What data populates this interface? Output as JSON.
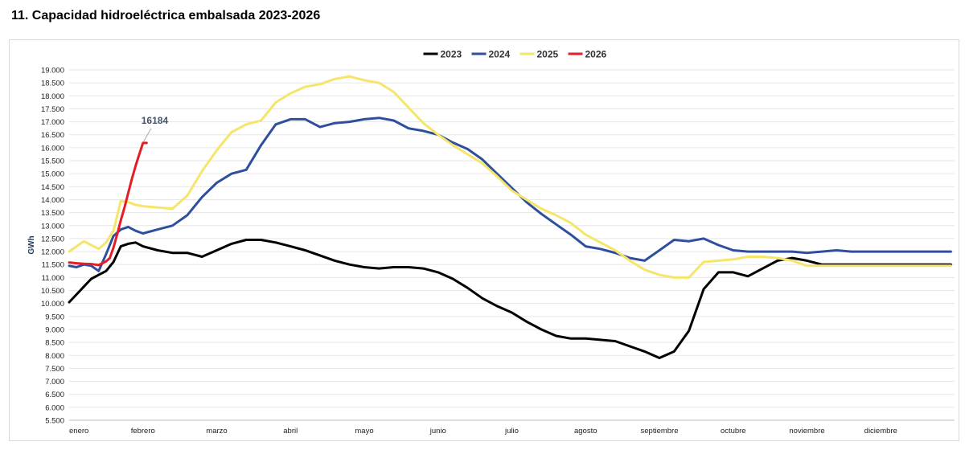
{
  "page": {
    "title": "11. Capacidad hidroeléctrica embalsada 2023-2026"
  },
  "chart_data": {
    "type": "line",
    "title": "11. Capacidad hidroeléctrica embalsada 2023-2026",
    "ylabel": "GWh",
    "xlabel": "",
    "ylim": [
      5500,
      19000
    ],
    "ytick_step": 500,
    "ytick_labels": [
      "5.500",
      "6.000",
      "6.500",
      "7.000",
      "7.500",
      "8.000",
      "8.500",
      "9.000",
      "9.500",
      "10.000",
      "10.500",
      "11.000",
      "11.500",
      "12.000",
      "12.500",
      "13.000",
      "13.500",
      "14.000",
      "14.500",
      "15.000",
      "15.500",
      "16.000",
      "16.500",
      "17.000",
      "17.500",
      "18.000",
      "18.500",
      "19.000"
    ],
    "xlim": [
      0,
      12
    ],
    "x_units": "months since 1 January",
    "categories": [
      "enero",
      "febrero",
      "marzo",
      "abril",
      "mayo",
      "junio",
      "julio",
      "agosto",
      "septiembre",
      "octubre",
      "noviembre",
      "diciembre"
    ],
    "legend_position": "top-center",
    "grid": true,
    "series": [
      {
        "name": "2023",
        "color": "#000000",
        "x": [
          0,
          0.1,
          0.2,
          0.3,
          0.4,
          0.5,
          0.6,
          0.7,
          0.8,
          0.9,
          1,
          1.2,
          1.4,
          1.6,
          1.8,
          2,
          2.2,
          2.4,
          2.6,
          2.8,
          3,
          3.2,
          3.4,
          3.6,
          3.8,
          4,
          4.2,
          4.4,
          4.6,
          4.8,
          5,
          5.2,
          5.4,
          5.6,
          5.8,
          6,
          6.2,
          6.4,
          6.6,
          6.8,
          7,
          7.2,
          7.4,
          7.6,
          7.8,
          8,
          8.2,
          8.4,
          8.6,
          8.8,
          9,
          9.2,
          9.4,
          9.6,
          9.8,
          10,
          10.2,
          10.4,
          10.6,
          10.8,
          11,
          11.2,
          11.4,
          11.6,
          11.8,
          11.95
        ],
        "values": [
          10050,
          10350,
          10650,
          10950,
          11100,
          11250,
          11600,
          12200,
          12300,
          12350,
          12200,
          12050,
          11950,
          11950,
          11800,
          12050,
          12300,
          12450,
          12450,
          12350,
          12200,
          12050,
          11850,
          11650,
          11500,
          11400,
          11350,
          11400,
          11400,
          11350,
          11200,
          10950,
          10600,
          10200,
          9900,
          9650,
          9300,
          9000,
          8750,
          8650,
          8650,
          8600,
          8550,
          8350,
          8150,
          7900,
          8150,
          8950,
          10550,
          11200,
          11200,
          11050,
          11350,
          11650,
          11750,
          11650,
          11500,
          11500,
          11500,
          11500,
          11500,
          11500,
          11500,
          11500,
          11500,
          11500
        ]
      },
      {
        "name": "2024",
        "color": "#2f4f9e",
        "x": [
          0,
          0.1,
          0.2,
          0.3,
          0.4,
          0.5,
          0.6,
          0.7,
          0.8,
          0.9,
          1,
          1.2,
          1.4,
          1.6,
          1.8,
          2,
          2.2,
          2.4,
          2.6,
          2.8,
          3,
          3.2,
          3.4,
          3.6,
          3.8,
          4,
          4.2,
          4.4,
          4.6,
          4.8,
          5,
          5.2,
          5.4,
          5.6,
          5.8,
          6,
          6.2,
          6.4,
          6.6,
          6.8,
          7,
          7.2,
          7.4,
          7.6,
          7.8,
          8,
          8.2,
          8.4,
          8.6,
          8.8,
          9,
          9.2,
          9.4,
          9.6,
          9.8,
          10,
          10.2,
          10.4,
          10.6,
          10.8,
          11,
          11.2,
          11.4,
          11.6,
          11.8,
          11.95
        ],
        "values": [
          11450,
          11400,
          11500,
          11450,
          11250,
          11900,
          12600,
          12850,
          12950,
          12800,
          12700,
          12850,
          13000,
          13400,
          14100,
          14650,
          15000,
          15150,
          16100,
          16900,
          17100,
          17100,
          16800,
          16950,
          17000,
          17100,
          17150,
          17050,
          16750,
          16650,
          16500,
          16200,
          15950,
          15550,
          15000,
          14450,
          13900,
          13450,
          13050,
          12650,
          12200,
          12100,
          11950,
          11750,
          11650,
          12050,
          12450,
          12400,
          12500,
          12250,
          12050,
          12000,
          12000,
          12000,
          12000,
          11950,
          12000,
          12050,
          12000,
          12000,
          12000,
          12000,
          12000,
          12000,
          12000,
          12000
        ]
      },
      {
        "name": "2025",
        "color": "#f5e56b",
        "x": [
          0,
          0.1,
          0.2,
          0.3,
          0.4,
          0.5,
          0.6,
          0.7,
          0.8,
          0.9,
          1,
          1.2,
          1.4,
          1.6,
          1.8,
          2,
          2.2,
          2.4,
          2.6,
          2.8,
          3,
          3.2,
          3.4,
          3.6,
          3.8,
          4,
          4.2,
          4.4,
          4.6,
          4.8,
          5,
          5.2,
          5.4,
          5.6,
          5.8,
          6,
          6.2,
          6.4,
          6.6,
          6.8,
          7,
          7.2,
          7.4,
          7.6,
          7.8,
          8,
          8.2,
          8.4,
          8.6,
          8.8,
          9,
          9.2,
          9.4,
          9.6,
          9.8,
          10,
          10.2,
          10.4,
          10.6,
          10.8,
          11,
          11.2,
          11.4,
          11.6,
          11.8,
          11.95
        ],
        "values": [
          12000,
          12200,
          12400,
          12250,
          12100,
          12350,
          12800,
          13950,
          13900,
          13800,
          13750,
          13700,
          13650,
          14150,
          15100,
          15900,
          16600,
          16900,
          17050,
          17750,
          18100,
          18350,
          18450,
          18650,
          18750,
          18600,
          18500,
          18150,
          17550,
          16950,
          16500,
          16100,
          15750,
          15400,
          14900,
          14350,
          14000,
          13650,
          13400,
          13100,
          12650,
          12350,
          12050,
          11650,
          11300,
          11100,
          11000,
          11000,
          11600,
          11650,
          11700,
          11800,
          11800,
          11750,
          11650,
          11450,
          11450,
          11450,
          11450,
          11450,
          11450,
          11450,
          11450,
          11450,
          11450,
          11450
        ]
      },
      {
        "name": "2026",
        "color": "#e31e24",
        "x": [
          0,
          0.1,
          0.2,
          0.3,
          0.35,
          0.4,
          0.45,
          0.5,
          0.55,
          0.6,
          0.65,
          0.7,
          0.75,
          0.8,
          0.85,
          0.9,
          0.95,
          1.0,
          1.05
        ],
        "values": [
          11580,
          11550,
          11530,
          11520,
          11500,
          11480,
          11550,
          11620,
          11750,
          12150,
          12650,
          13200,
          13700,
          14250,
          14800,
          15300,
          15750,
          16184,
          16184
        ]
      }
    ],
    "annotations": [
      {
        "text": "16184",
        "series": "2026",
        "x": 1.0,
        "y": 16184
      }
    ]
  }
}
